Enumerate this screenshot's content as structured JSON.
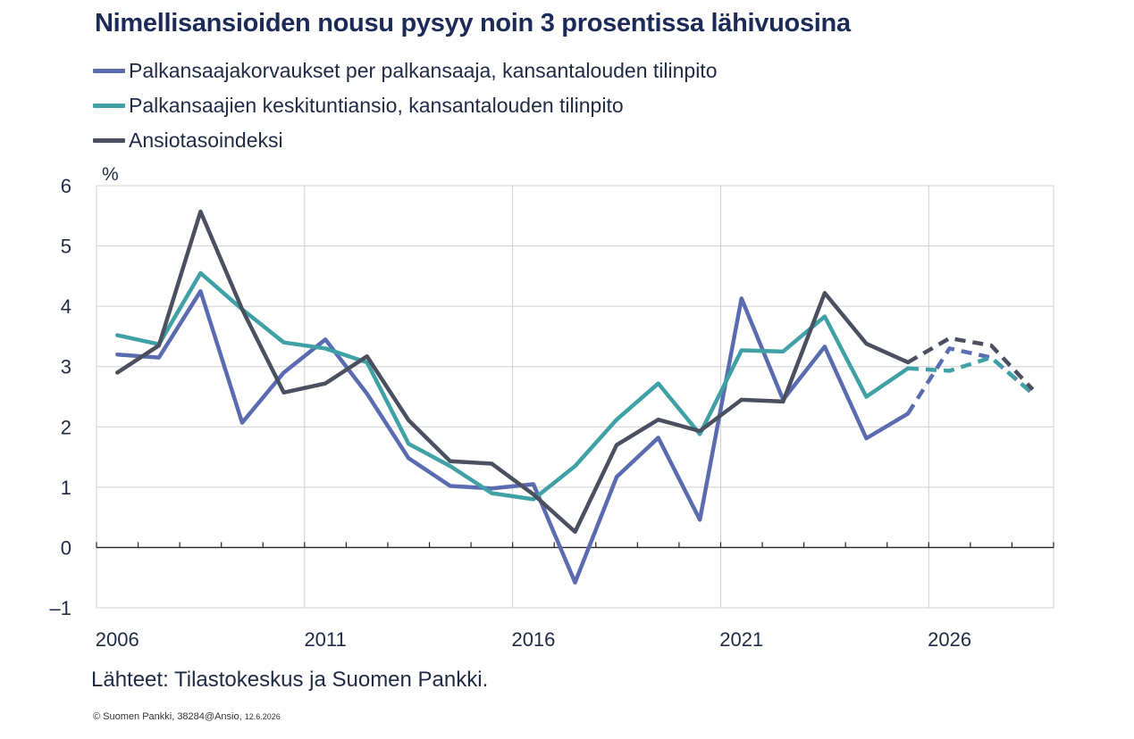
{
  "title": "Nimellisansioiden nousu pysyy noin 3 prosentissa lähivuosina",
  "legend": [
    {
      "label": "Palkansaajakorvaukset per palkansaaja, kansantalouden tilinpito",
      "color": "#5b6bb0"
    },
    {
      "label": "Palkansaajien keskituntiansio, kansantalouden tilinpito",
      "color": "#3fa1a6"
    },
    {
      "label": "Ansiotasoindeksi",
      "color": "#4a5060"
    }
  ],
  "source": "Lähteet: Tilastokeskus ja Suomen Pankki.",
  "footer": {
    "text": "© Suomen Pankki, 38284@Ansio,",
    "date": "12.6.2026"
  },
  "chart_data": {
    "type": "line",
    "title": "Nimellisansioiden nousu pysyy noin 3 prosentissa lähivuosina",
    "ylabel": "%",
    "ylim": [
      -1,
      6
    ],
    "yticks": [
      "6",
      "5",
      "4",
      "3",
      "2",
      "1",
      "0",
      "–1"
    ],
    "xticks": [
      "2006",
      "2011",
      "2016",
      "2021",
      "2026"
    ],
    "x": [
      2006,
      2007,
      2008,
      2009,
      2010,
      2011,
      2012,
      2013,
      2014,
      2015,
      2016,
      2017,
      2018,
      2019,
      2020,
      2021,
      2022,
      2023,
      2024,
      2025,
      2026,
      2027,
      2028
    ],
    "forecast_from": 2025,
    "grid": true,
    "series": [
      {
        "name": "Palkansaajakorvaukset per palkansaaja, kansantalouden tilinpito",
        "color": "#5b6bb0",
        "values": [
          3.2,
          3.15,
          4.25,
          2.07,
          2.9,
          3.45,
          2.55,
          1.48,
          1.02,
          0.98,
          1.05,
          -0.58,
          1.17,
          1.82,
          0.46,
          4.13,
          2.45,
          3.33,
          1.81,
          2.22,
          3.3,
          3.15,
          2.55
        ]
      },
      {
        "name": "Palkansaajien keskituntiansio, kansantalouden tilinpito",
        "color": "#3fa1a6",
        "values": [
          3.52,
          3.37,
          4.55,
          3.95,
          3.4,
          3.3,
          3.07,
          1.72,
          1.35,
          0.9,
          0.8,
          1.35,
          2.12,
          2.72,
          1.88,
          3.27,
          3.25,
          3.83,
          2.5,
          2.97,
          2.93,
          3.15,
          2.55
        ]
      },
      {
        "name": "Ansiotasoindeksi",
        "color": "#4a5060",
        "values": [
          2.9,
          3.35,
          5.57,
          3.95,
          2.57,
          2.72,
          3.17,
          2.11,
          1.43,
          1.39,
          0.88,
          0.26,
          1.7,
          2.12,
          1.93,
          2.45,
          2.42,
          4.22,
          3.38,
          3.07,
          3.47,
          3.35,
          2.62
        ]
      }
    ]
  }
}
